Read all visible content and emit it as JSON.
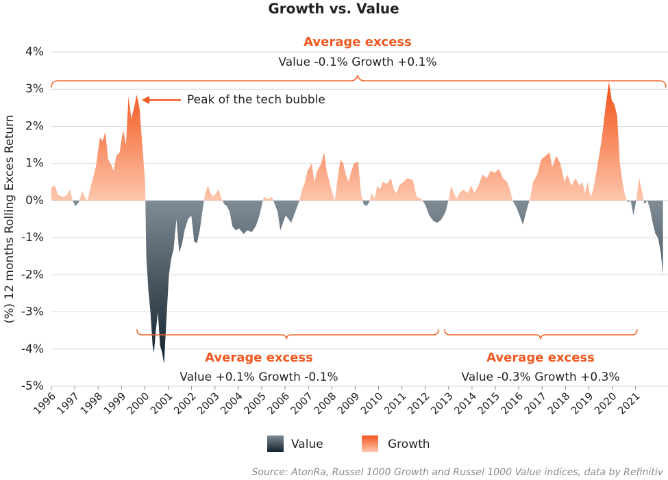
{
  "chart_data": {
    "type": "area",
    "title": "Growth vs. Value",
    "y_label": "(%) 12 months Rolling Exces Return",
    "source": "Source: AtonRa, Russel 1000 Growth and Russel 1000 Value indices, data by Refinitiv",
    "callout": "Peak of the tech bubble",
    "annotations": [
      {
        "title": "Average excess",
        "text": "Value -0.1% Growth +0.1%"
      },
      {
        "title": "Average excess",
        "text": "Value +0.1% Growth -0.1%"
      },
      {
        "title": "Average excess",
        "text": "Value -0.3%  Growth +0.3%"
      }
    ],
    "legend": [
      {
        "name": "Value",
        "color": "#13222e"
      },
      {
        "name": "Growth",
        "color": "#f3571f"
      }
    ],
    "xlim": [
      1996,
      2022.3
    ],
    "xticks": [
      1996,
      1997,
      1998,
      1999,
      2000,
      2001,
      2002,
      2003,
      2004,
      2005,
      2006,
      2007,
      2008,
      2009,
      2010,
      2011,
      2012,
      2013,
      2014,
      2015,
      2016,
      2017,
      2018,
      2019,
      2020,
      2021
    ],
    "ylim": [
      -5,
      4
    ],
    "yticks": [
      {
        "value": 4,
        "label": "4%"
      },
      {
        "value": 3,
        "label": "3%"
      },
      {
        "value": 2,
        "label": "2%"
      },
      {
        "value": 1,
        "label": "1%"
      },
      {
        "value": 0,
        "label": "0%"
      },
      {
        "value": -1,
        "label": "-1%"
      },
      {
        "value": -2,
        "label": "-2%"
      },
      {
        "value": -3,
        "label": "-3%"
      },
      {
        "value": -4,
        "label": "-4%"
      },
      {
        "value": -5,
        "label": "-5%"
      }
    ],
    "grid": true,
    "x": [
      1996.0,
      1996.15,
      1996.29,
      1996.5,
      1996.67,
      1996.79,
      1996.91,
      1997.02,
      1997.17,
      1997.32,
      1997.43,
      1997.55,
      1997.67,
      1997.78,
      1997.9,
      1998.08,
      1998.19,
      1998.31,
      1998.43,
      1998.54,
      1998.66,
      1998.78,
      1998.92,
      1999.07,
      1999.19,
      1999.3,
      1999.42,
      1999.54,
      1999.65,
      1999.77,
      1999.89,
      2000.01,
      2000.06,
      2000.15,
      2000.24,
      2000.33,
      2000.39,
      2000.47,
      2000.56,
      2000.65,
      2000.74,
      2000.82,
      2000.94,
      2001.03,
      2001.12,
      2001.23,
      2001.35,
      2001.47,
      2001.58,
      2001.7,
      2001.85,
      2001.99,
      2002.11,
      2002.23,
      2002.35,
      2002.46,
      2002.58,
      2002.7,
      2002.81,
      2002.93,
      2003.05,
      2003.16,
      2003.28,
      2003.4,
      2003.51,
      2003.63,
      2003.75,
      2003.89,
      2004.04,
      2004.22,
      2004.39,
      2004.57,
      2004.74,
      2004.86,
      2004.98,
      2005.09,
      2005.27,
      2005.44,
      2005.56,
      2005.68,
      2005.8,
      2005.91,
      2006.03,
      2006.15,
      2006.26,
      2006.38,
      2006.5,
      2006.61,
      2006.73,
      2006.85,
      2006.96,
      2007.14,
      2007.26,
      2007.37,
      2007.55,
      2007.67,
      2007.78,
      2007.9,
      2008.02,
      2008.13,
      2008.25,
      2008.37,
      2008.49,
      2008.6,
      2008.72,
      2008.84,
      2008.95,
      2009.13,
      2009.25,
      2009.36,
      2009.48,
      2009.6,
      2009.71,
      2009.83,
      2009.95,
      2010.06,
      2010.18,
      2010.36,
      2010.53,
      2010.65,
      2010.77,
      2010.88,
      2011.06,
      2011.23,
      2011.47,
      2011.64,
      2011.82,
      2011.99,
      2012.17,
      2012.35,
      2012.52,
      2012.7,
      2012.87,
      2012.99,
      2013.11,
      2013.22,
      2013.34,
      2013.46,
      2013.63,
      2013.81,
      2013.98,
      2014.1,
      2014.27,
      2014.45,
      2014.63,
      2014.8,
      2014.98,
      2015.15,
      2015.33,
      2015.5,
      2015.62,
      2015.74,
      2015.91,
      2016.03,
      2016.18,
      2016.32,
      2016.5,
      2016.61,
      2016.79,
      2016.96,
      2017.14,
      2017.32,
      2017.43,
      2017.61,
      2017.78,
      2017.96,
      2018.08,
      2018.25,
      2018.43,
      2018.6,
      2018.72,
      2018.84,
      2018.95,
      2019.07,
      2019.19,
      2019.36,
      2019.54,
      2019.71,
      2019.86,
      2019.98,
      2020.09,
      2020.21,
      2020.33,
      2020.44,
      2020.56,
      2020.68,
      2020.79,
      2020.91,
      2021.03,
      2021.15,
      2021.26,
      2021.38,
      2021.5,
      2021.61,
      2021.73,
      2021.85,
      2021.96,
      2022.08,
      2022.17
    ],
    "values": [
      0.35,
      0.4,
      0.15,
      0.1,
      0.15,
      0.3,
      0.0,
      -0.15,
      -0.05,
      0.25,
      0.1,
      0.0,
      0.35,
      0.6,
      0.9,
      1.7,
      1.6,
      1.85,
      1.1,
      1.0,
      0.8,
      1.2,
      1.3,
      1.9,
      1.5,
      2.8,
      2.2,
      2.5,
      2.85,
      2.5,
      1.5,
      0.5,
      -1.5,
      -2.4,
      -3.0,
      -3.9,
      -4.1,
      -3.5,
      -3.0,
      -3.9,
      -4.1,
      -4.4,
      -3.0,
      -2.0,
      -1.6,
      -1.3,
      -0.5,
      -1.4,
      -1.2,
      -0.8,
      -0.5,
      -0.4,
      -1.1,
      -1.15,
      -0.8,
      -0.3,
      0.2,
      0.4,
      0.2,
      0.1,
      0.2,
      0.3,
      0.05,
      -0.1,
      -0.15,
      -0.3,
      -0.7,
      -0.8,
      -0.75,
      -0.9,
      -0.8,
      -0.85,
      -0.7,
      -0.5,
      -0.2,
      0.1,
      0.05,
      0.1,
      -0.1,
      -0.3,
      -0.8,
      -0.6,
      -0.4,
      -0.5,
      -0.6,
      -0.4,
      -0.2,
      0.0,
      0.3,
      0.5,
      0.8,
      1.0,
      0.5,
      0.8,
      1.0,
      1.3,
      0.8,
      0.5,
      0.2,
      0.0,
      0.6,
      1.1,
      1.0,
      0.7,
      0.5,
      0.8,
      1.0,
      1.05,
      0.2,
      -0.1,
      -0.15,
      -0.05,
      0.2,
      0.05,
      0.4,
      0.3,
      0.5,
      0.45,
      0.6,
      0.3,
      0.2,
      0.4,
      0.5,
      0.6,
      0.55,
      0.1,
      0.05,
      -0.1,
      -0.4,
      -0.55,
      -0.6,
      -0.5,
      -0.3,
      0.0,
      0.4,
      0.2,
      0.05,
      0.2,
      0.3,
      0.2,
      0.4,
      0.2,
      0.4,
      0.7,
      0.6,
      0.8,
      0.75,
      0.85,
      0.6,
      0.5,
      0.3,
      0.0,
      -0.2,
      -0.4,
      -0.65,
      -0.3,
      0.1,
      0.5,
      0.7,
      1.1,
      1.2,
      1.3,
      0.9,
      1.2,
      1.0,
      0.5,
      0.7,
      0.4,
      0.6,
      0.4,
      0.5,
      0.2,
      0.5,
      0.1,
      0.3,
      0.9,
      1.6,
      2.5,
      3.2,
      2.7,
      2.6,
      2.3,
      1.0,
      0.5,
      0.1,
      -0.05,
      0.0,
      -0.4,
      0.0,
      0.6,
      0.3,
      -0.1,
      0.0,
      -0.2,
      -0.6,
      -0.9,
      -1.0,
      -1.4,
      -2.0
    ]
  }
}
